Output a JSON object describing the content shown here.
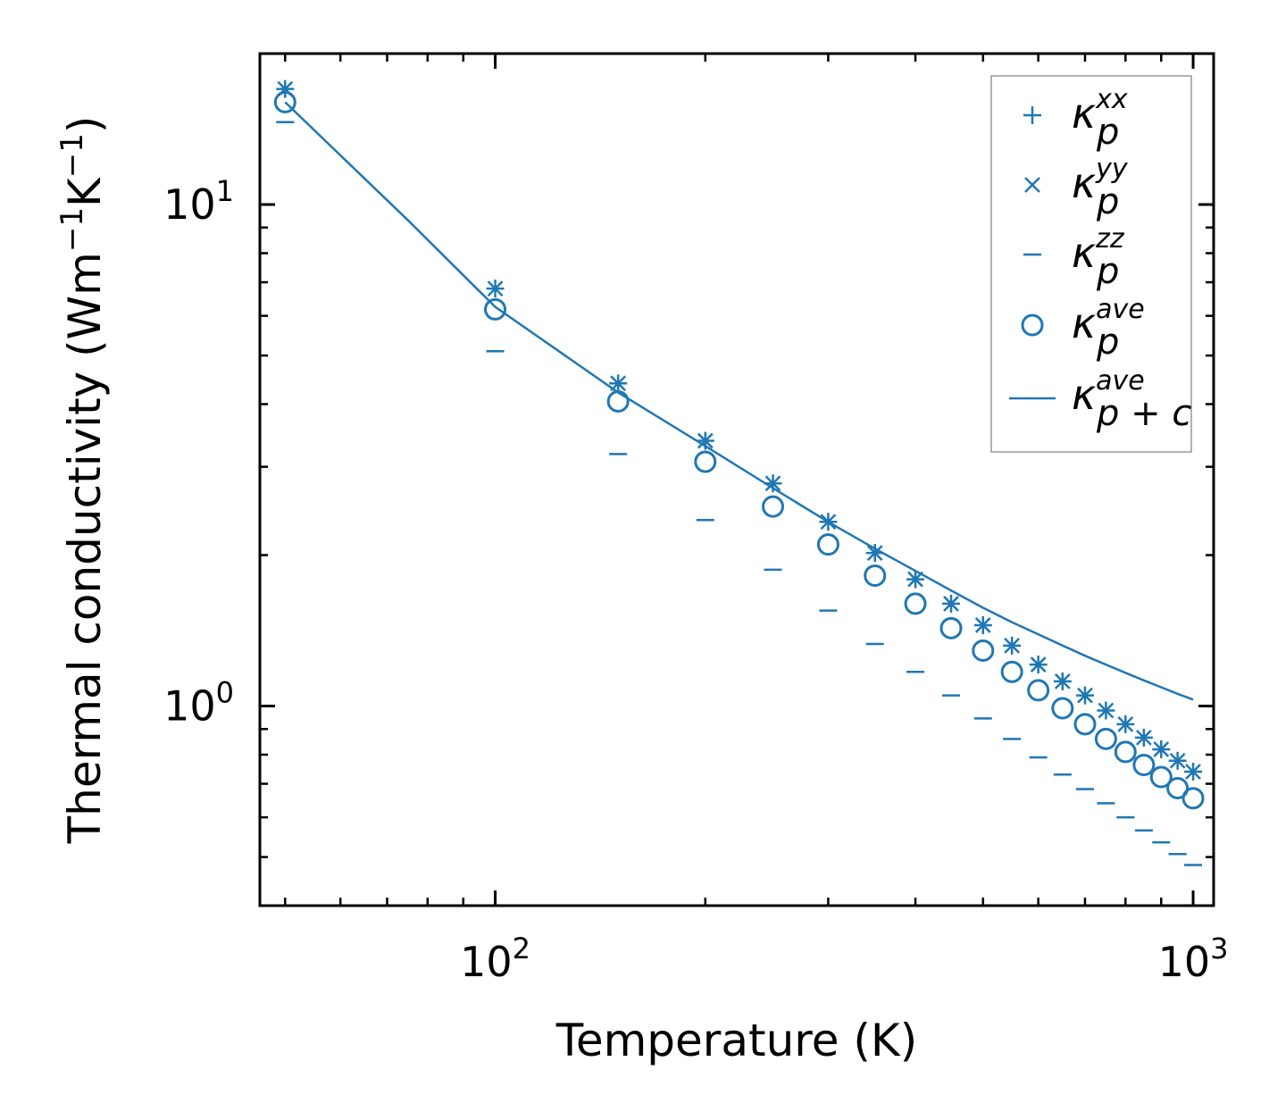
{
  "chart_data": {
    "type": "scatter",
    "title": "",
    "xlabel": "Temperature (K)",
    "ylabel": "Thermal conductivity (Wm$-1$K$-1$)",
    "ylabel_parts": {
      "base": "Thermal conductivity (Wm",
      "exp1": "−1",
      "mid": "K",
      "exp2": "−1",
      "end": ")"
    },
    "xscale": "log",
    "yscale": "log",
    "xlim": [
      46,
      1070
    ],
    "ylim": [
      0.4,
      20.0
    ],
    "xticks": [
      {
        "value": 100,
        "base": "10",
        "exp": "2"
      },
      {
        "value": 1000,
        "base": "10",
        "exp": "3"
      }
    ],
    "yticks": [
      {
        "value": 1,
        "base": "10",
        "exp": "0"
      },
      {
        "value": 10,
        "base": "10",
        "exp": "1"
      }
    ],
    "x": [
      50,
      100,
      150,
      200,
      250,
      300,
      350,
      400,
      450,
      500,
      550,
      600,
      650,
      700,
      750,
      800,
      850,
      900,
      950,
      1000
    ],
    "series": [
      {
        "name": "κ_p^xx",
        "base": "κ",
        "sub": "p",
        "sup": "xx",
        "marker": "plus",
        "values": [
          17.0,
          6.8,
          4.4,
          3.38,
          2.78,
          2.33,
          2.02,
          1.79,
          1.6,
          1.45,
          1.32,
          1.21,
          1.12,
          1.05,
          0.98,
          0.92,
          0.865,
          0.82,
          0.778,
          0.74
        ]
      },
      {
        "name": "κ_p^yy",
        "base": "κ",
        "sub": "p",
        "sup": "yy",
        "marker": "x",
        "values": [
          17.0,
          6.8,
          4.4,
          3.38,
          2.78,
          2.33,
          2.02,
          1.79,
          1.6,
          1.45,
          1.32,
          1.21,
          1.12,
          1.05,
          0.98,
          0.92,
          0.865,
          0.82,
          0.778,
          0.74
        ]
      },
      {
        "name": "κ_p^zz",
        "base": "κ",
        "sub": "p",
        "sup": "zz",
        "marker": "hline",
        "values": [
          14.6,
          5.1,
          3.18,
          2.35,
          1.87,
          1.55,
          1.33,
          1.17,
          1.05,
          0.945,
          0.86,
          0.79,
          0.73,
          0.683,
          0.64,
          0.6,
          0.565,
          0.535,
          0.507,
          0.482
        ]
      },
      {
        "name": "κ_p^ave",
        "base": "κ",
        "sub": "p",
        "sup": "ave",
        "marker": "circle",
        "values": [
          16.0,
          6.18,
          4.05,
          3.07,
          2.5,
          2.1,
          1.82,
          1.6,
          1.43,
          1.29,
          1.17,
          1.075,
          0.99,
          0.92,
          0.86,
          0.81,
          0.763,
          0.722,
          0.686,
          0.655
        ]
      }
    ],
    "line": {
      "name": "κ_p+c^ave",
      "base": "κ",
      "sub": "p + c",
      "sup": "ave",
      "x": [
        50,
        75,
        100,
        150,
        200,
        250,
        300,
        350,
        400,
        450,
        500,
        550,
        600,
        650,
        700,
        750,
        800,
        850,
        900,
        950,
        1000
      ],
      "values": [
        16.0,
        9.3,
        6.25,
        4.22,
        3.3,
        2.72,
        2.33,
        2.06,
        1.86,
        1.7,
        1.57,
        1.47,
        1.39,
        1.32,
        1.26,
        1.21,
        1.165,
        1.125,
        1.09,
        1.058,
        1.03
      ]
    },
    "color": "#1f77b4",
    "legend_position": "top-right",
    "grid": false
  }
}
